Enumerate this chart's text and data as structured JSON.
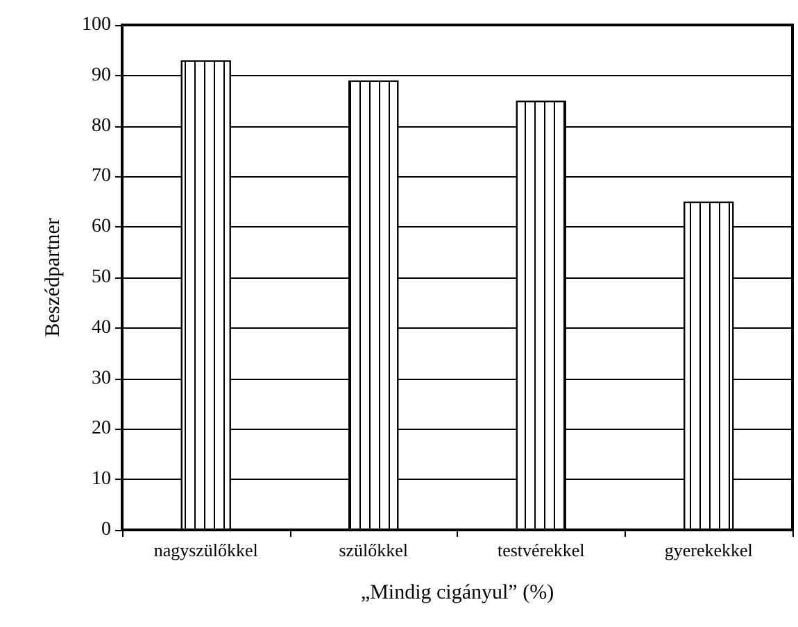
{
  "chart_data": {
    "type": "bar",
    "xlabel": "„Mindig cigányul” (%)",
    "ylabel": "Beszédpartner",
    "categories": [
      "nagyszülőkkel",
      "szülőkkel",
      "testvérekkel",
      "gyerekekkel"
    ],
    "values": [
      93,
      89,
      85,
      65
    ],
    "color": "#ffffff",
    "ylim": [
      0,
      100
    ],
    "yticks": [
      0,
      10,
      20,
      30,
      40,
      50,
      60,
      70,
      80,
      90,
      100
    ],
    "grid": "y"
  }
}
